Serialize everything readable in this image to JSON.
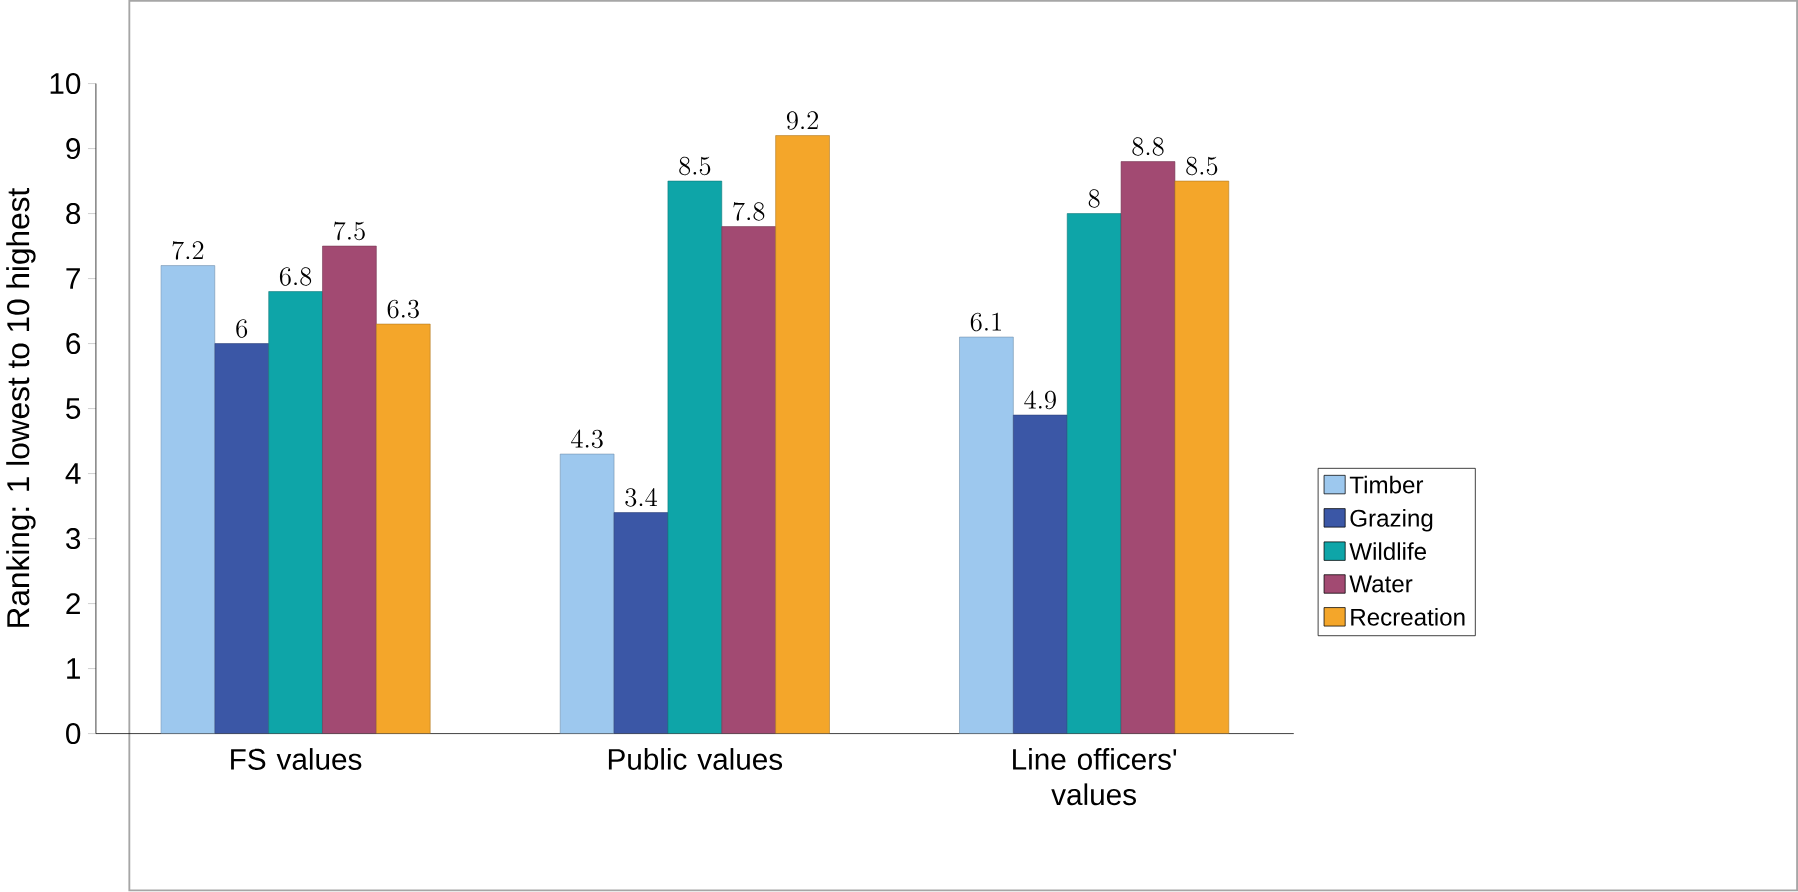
{
  "chart_data": {
    "type": "bar",
    "ylabel": "Ranking: 1 lowest to 10 highest",
    "categories": [
      "FS values",
      "Public values",
      "Line officers' values"
    ],
    "series": [
      {
        "name": "Timber",
        "color": "#9dc8ee",
        "values": [
          7.2,
          4.3,
          6.1
        ]
      },
      {
        "name": "Grazing",
        "color": "#3b57a6",
        "values": [
          6,
          3.4,
          4.9
        ]
      },
      {
        "name": "Wildlife",
        "color": "#0ea5a8",
        "values": [
          6.8,
          8.5,
          8
        ]
      },
      {
        "name": "Water",
        "color": "#a24a72",
        "values": [
          7.5,
          7.8,
          8.8
        ]
      },
      {
        "name": "Recreation",
        "color": "#f4a62a",
        "values": [
          6.3,
          9.2,
          8.5
        ]
      }
    ],
    "ylim": [
      0,
      10
    ],
    "yticks": [
      0,
      1,
      2,
      3,
      4,
      5,
      6,
      7,
      8,
      9,
      10
    ],
    "data_labels": true,
    "legend": "right",
    "grid": false
  }
}
